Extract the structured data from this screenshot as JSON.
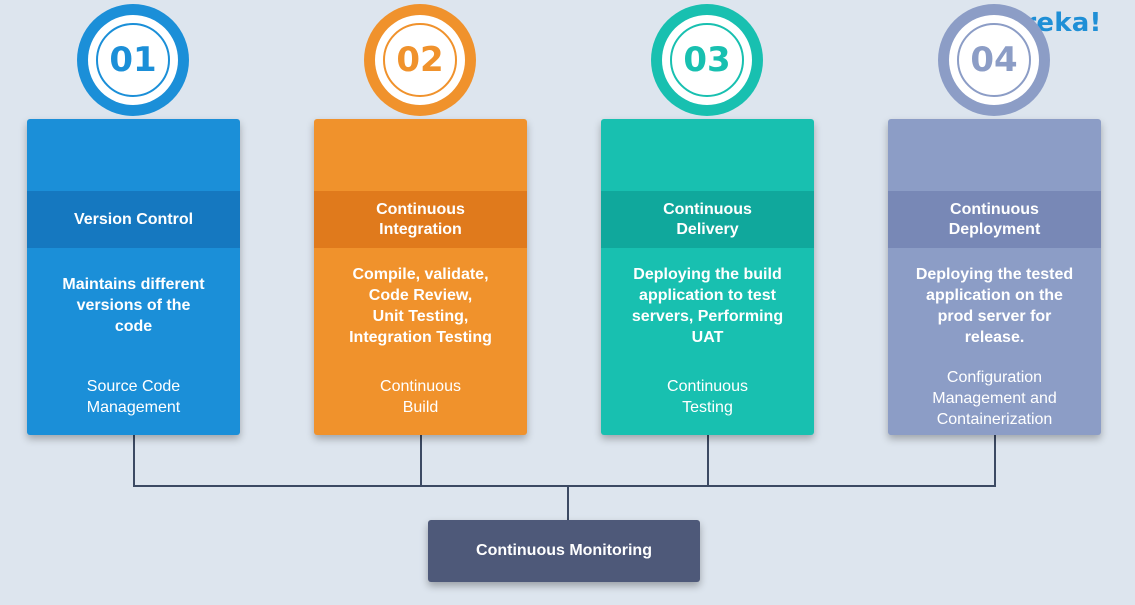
{
  "logo": "edureka!",
  "cards": [
    {
      "number": "01",
      "title_lines": [
        "Version Control"
      ],
      "desc_lines": [
        "Maintains different",
        "versions of the",
        "code"
      ],
      "tool_lines": [
        "Source Code",
        "Management"
      ]
    },
    {
      "number": "02",
      "title_lines": [
        "Continuous",
        "Integration"
      ],
      "desc_lines": [
        "Compile, validate,",
        "Code Review,",
        "Unit Testing,",
        "Integration Testing"
      ],
      "tool_lines": [
        "Continuous",
        "Build"
      ]
    },
    {
      "number": "03",
      "title_lines": [
        "Continuous",
        "Delivery"
      ],
      "desc_lines": [
        "Deploying the build",
        "application to test",
        "servers, Performing",
        "UAT"
      ],
      "tool_lines": [
        "Continuous",
        "Testing"
      ]
    },
    {
      "number": "04",
      "title_lines": [
        "Continuous",
        "Deployment"
      ],
      "desc_lines": [
        "Deploying the tested",
        "application on the",
        "prod server for",
        "release."
      ],
      "tool_lines": [
        "Configuration",
        "Management and",
        "Containerization"
      ]
    }
  ],
  "monitoring": "Continuous Monitoring",
  "colors": {
    "card1": "#1b8fd8",
    "card2": "#f0922c",
    "card3": "#18c0b0",
    "card4": "#8c9dc6",
    "monitor": "#4e5979",
    "logo": "#1f8fd6"
  }
}
